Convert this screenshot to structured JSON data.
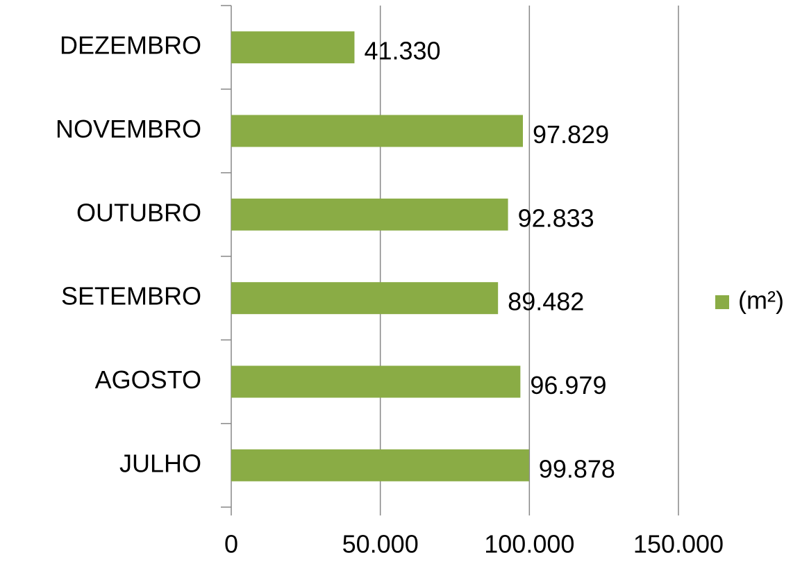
{
  "chart_data": {
    "type": "bar",
    "orientation": "horizontal",
    "categories": [
      "JULHO",
      "AGOSTO",
      "SETEMBRO",
      "OUTUBRO",
      "NOVEMBRO",
      "DEZEMBRO"
    ],
    "series": [
      {
        "name": "(m²)",
        "color": "#8aac45",
        "values": [
          99878,
          96979,
          89482,
          92833,
          97829,
          41330
        ],
        "value_labels": [
          "99.878",
          "96.979",
          "89.482",
          "92.833",
          "97.829",
          "41.330"
        ]
      }
    ],
    "xlim": [
      0,
      150000
    ],
    "xticks": [
      0,
      {
        "value": 50000,
        "label": "50.000"
      },
      {
        "value": 100000,
        "label": "100.000"
      },
      {
        "value": 150000,
        "label": "150.000"
      }
    ],
    "grid": true,
    "legend": "right"
  }
}
